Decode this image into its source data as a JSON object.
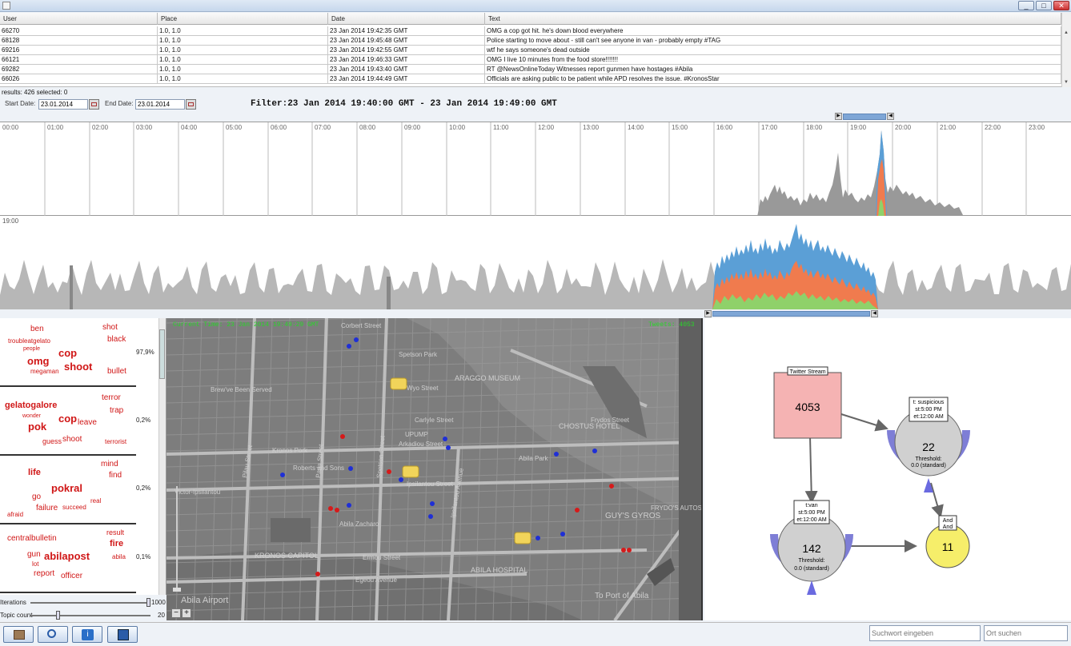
{
  "window": {
    "minimize": "_",
    "maximize": "□",
    "close": "✕"
  },
  "table": {
    "columns": [
      "User",
      "Place",
      "Date",
      "Text"
    ],
    "rows": [
      [
        "66270",
        "1.0, 1.0",
        "23 Jan 2014 19:42:35 GMT",
        "OMG a cop got hit. he's down blood everywhere"
      ],
      [
        "68128",
        "1.0, 1.0",
        "23 Jan 2014 19:45:48 GMT",
        "Police starting to move about - still can't see anyone in van - probably empty #TAG"
      ],
      [
        "69216",
        "1.0, 1.0",
        "23 Jan 2014 19:42:55 GMT",
        "wtf he says someone's dead outside"
      ],
      [
        "66121",
        "1.0, 1.0",
        "23 Jan 2014 19:46:33 GMT",
        "OMG I live 10 minutes from the food store!!!!!!!"
      ],
      [
        "69282",
        "1.0, 1.0",
        "23 Jan 2014 19:43:40 GMT",
        "RT @NewsOnlineToday Witnesses report gunmen have hostages #Abila"
      ],
      [
        "66026",
        "1.0, 1.0",
        "23 Jan 2014 19:44:49 GMT",
        "Officials are asking public to be patient while APD resolves the issue. #KronosStar"
      ]
    ]
  },
  "status": "results: 426 selected: 0",
  "start_label": "Start Date:",
  "start_date": "23.01.2014",
  "end_label": "End Date:",
  "end_date": "23.01.2014",
  "filter": "Filter:23 Jan 2014 19:40:00 GMT - 23 Jan 2014 19:49:00 GMT",
  "hours": [
    "00:00",
    "01:00",
    "02:00",
    "03:00",
    "04:00",
    "05:00",
    "06:00",
    "07:00",
    "08:00",
    "09:00",
    "10:00",
    "11:00",
    "12:00",
    "13:00",
    "14:00",
    "15:00",
    "16:00",
    "17:00",
    "18:00",
    "19:00",
    "20:00",
    "21:00",
    "22:00",
    "23:00"
  ],
  "detail_label": "19:00",
  "topics": [
    {
      "pct": "97,9%",
      "words": [
        "ben",
        "shot",
        "troubleatgelato",
        "black",
        "people",
        "cop",
        "omg",
        "shoot",
        "megaman",
        "bullet"
      ]
    },
    {
      "pct": "0,2%",
      "words": [
        "terror",
        "gelatogalore",
        "trap",
        "wonder",
        "cop",
        "leave",
        "pok",
        "guess",
        "shoot",
        "terrorist"
      ]
    },
    {
      "pct": "0,2%",
      "words": [
        "mind",
        "life",
        "find",
        "pokral",
        "go",
        "real",
        "failure",
        "succeed",
        "afraid"
      ]
    },
    {
      "pct": "0,1%",
      "words": [
        "centralbulletin",
        "result",
        "fire",
        "gun",
        "abilapost",
        "lot",
        "abila",
        "report",
        "officer"
      ]
    }
  ],
  "iterations_label": "Iterations",
  "iterations_value": "1000",
  "topic_count_label": "Topic count",
  "topic_count_value": "20",
  "map": {
    "current_time": "Current Time: 23 Jan 2014 19:49:29 GMT",
    "tweets": "Tweets: 4053",
    "labels": [
      "Corbert Street",
      "Spetson Park",
      "Wyo Street",
      "ARAGGO MUSEUM",
      "Pilau Street",
      "Parla Street",
      "Spetson Street",
      "Carlyle Street",
      "Arkadiou Street",
      "Ipsilantou Street",
      "Victor-Ipsilantou",
      "CHOSTUS HOTEL",
      "Frydos Street",
      "Abila Airport",
      "KRONOS CAPITOL",
      "ABILA HOSPITAL",
      "GUY'S GYROS",
      "FRYDO'S AUTOSUPPLY",
      "Ermou Street",
      "Egeou Avenue",
      "To Port of Abila",
      "Roberts and Sons",
      "Kronos Pork",
      "UPUMP",
      "Abila Park",
      "Ipsilantou Avenue",
      "Brew've Been Served",
      "Abila Zacharo"
    ],
    "zoom_out": "−",
    "zoom_in": "+"
  },
  "graph": {
    "stream": {
      "title": "Twitter Stream",
      "count": "4053"
    },
    "suspicious": {
      "label1": "t: suspicious",
      "label2": "st:5:00 PM",
      "label3": "et:12:00 AM",
      "count": "22",
      "threshold1": "Threshold:",
      "threshold2": "0.0 (standard)"
    },
    "van": {
      "label1": "t:van",
      "label2": "st:5:00 PM",
      "label3": "et:12:00 AM",
      "count": "142",
      "threshold1": "Threshold:",
      "threshold2": "0.0 (standard)"
    },
    "and": {
      "label1": "And",
      "label2": "And",
      "count": "11"
    }
  },
  "search_placeholder": "Suchwort eingeben",
  "place_placeholder": "Ort suchen",
  "colors": {
    "accent": "#7ea6d6",
    "blue": "#5b9fd6",
    "orange": "#f07b4e",
    "green": "#8fd16a",
    "red": "#d01616",
    "yellow": "#f6ee6a",
    "pink": "#f5b3b3"
  }
}
